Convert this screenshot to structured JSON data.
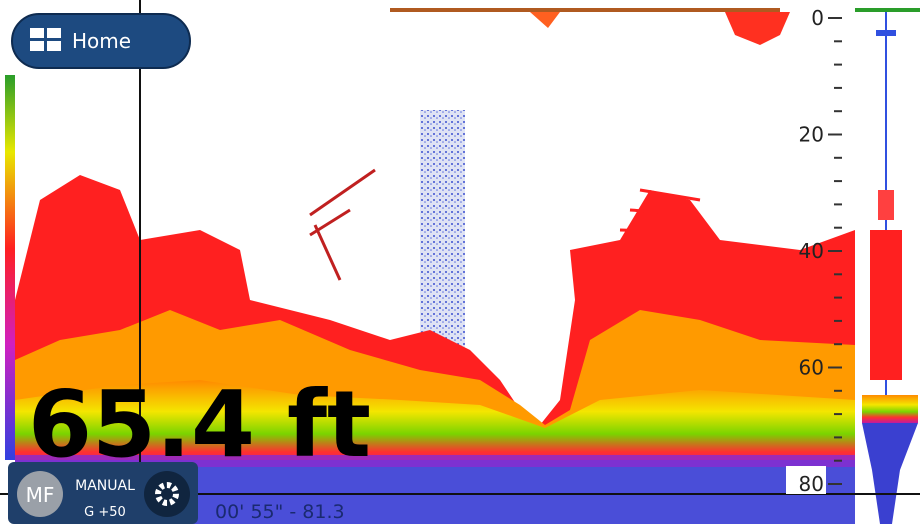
{
  "home_button": {
    "label": "Home"
  },
  "depth_scale": {
    "labels": [
      "0",
      "20",
      "40",
      "60",
      "80"
    ]
  },
  "depth_readout": "65.4 ft",
  "mode_panel": {
    "badge": "MF",
    "label": "MANUAL",
    "gain": "G +50"
  },
  "cursor_info": "00' 55\" - 81.3"
}
